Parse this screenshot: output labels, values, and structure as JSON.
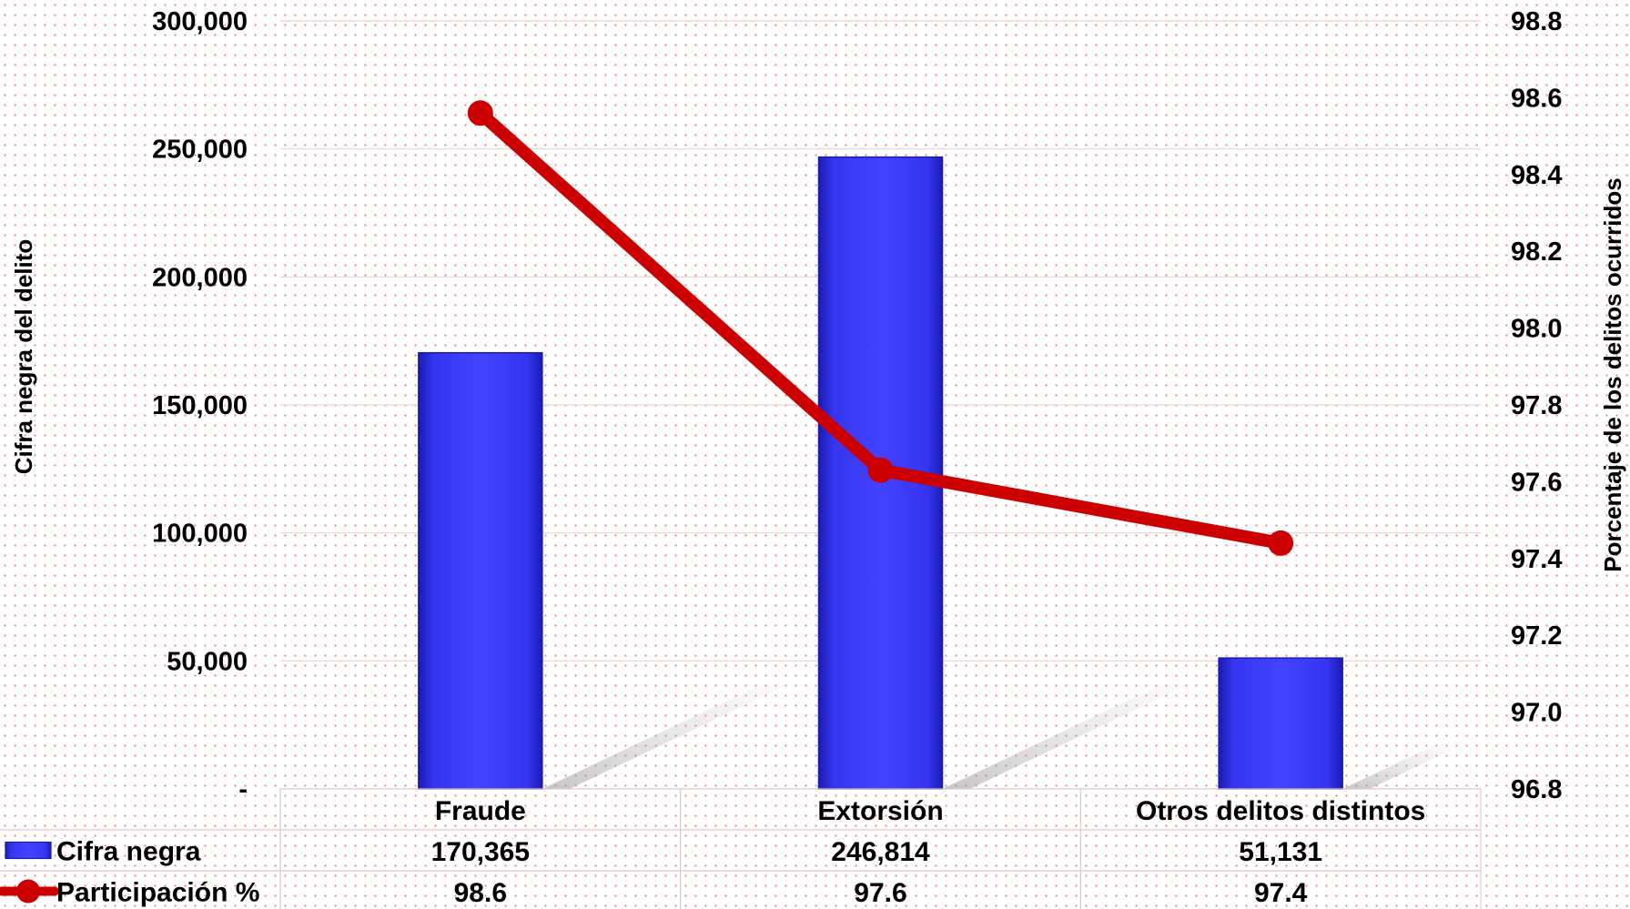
{
  "colors": {
    "bar": "#3333ee",
    "bar_dark": "#1b1bb0",
    "line": "#cc0000"
  },
  "chart_data": {
    "type": "bar",
    "categories": [
      "Fraude",
      "Extorsión",
      "Otros delitos distintos"
    ],
    "y_ticks": [
      "-",
      "50,000",
      "100,000",
      "150,000",
      "200,000",
      "250,000",
      "300,000"
    ],
    "y2_ticks": [
      "96.8",
      "97.0",
      "97.2",
      "97.4",
      "97.6",
      "97.8",
      "98.0",
      "98.2",
      "98.4",
      "98.6",
      "98.8"
    ],
    "ylabel": "Cifra negra del delito",
    "y2label": "Porcentaje de los delitos ocurridos",
    "ylim": [
      0,
      300000
    ],
    "y2lim": [
      96.8,
      98.8
    ],
    "grid": true,
    "series": [
      {
        "name": "Cifra negra",
        "type": "bar",
        "axis": "left",
        "values": [
          170365,
          246814,
          51131
        ],
        "labels": [
          "170,365",
          "246,814",
          "51,131"
        ]
      },
      {
        "name": "Participación %",
        "type": "line",
        "axis": "right",
        "values": [
          98.56,
          97.63,
          97.44
        ],
        "labels": [
          "98.6",
          "97.6",
          "97.4"
        ]
      }
    ]
  }
}
